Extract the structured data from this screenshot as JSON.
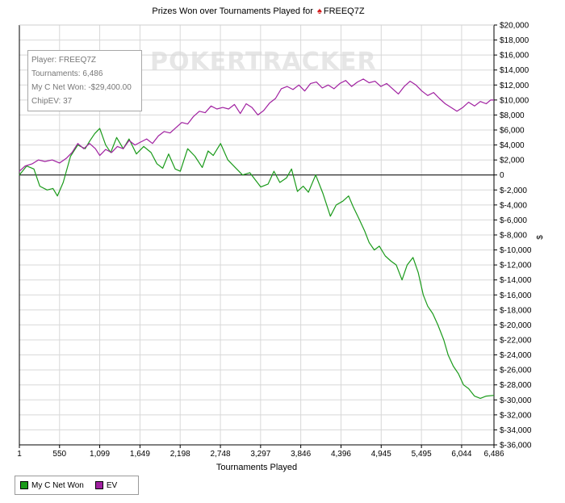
{
  "title": {
    "prefix": "Prizes Won over Tournaments Played for",
    "suit_icon": "spade-icon",
    "player": "FREEQ7Z"
  },
  "watermark": "POKERTRACKER",
  "info_box": {
    "player": "Player: FREEQ7Z",
    "tournaments": "Tournaments: 6,486",
    "net_won": "My C Net Won: -$29,400.00",
    "chipev": "ChipEV: 37"
  },
  "legend": {
    "items": [
      {
        "label": "My C Net Won",
        "color": "#1a9a1a"
      },
      {
        "label": "EV",
        "color": "#a020a0"
      }
    ]
  },
  "chart_data": {
    "type": "line",
    "title": "Prizes Won over Tournaments Played for FREEQ7Z",
    "xlabel": "Tournaments Played",
    "ylabel": "$",
    "xlim": [
      1,
      6486
    ],
    "ylim": [
      -36000,
      20000
    ],
    "x_ticks": [
      1,
      550,
      1099,
      1649,
      2198,
      2748,
      3297,
      3846,
      4396,
      4945,
      5495,
      6044,
      6486
    ],
    "x_tick_labels": [
      "1",
      "550",
      "1,099",
      "1,649",
      "2,198",
      "2,748",
      "3,297",
      "3,846",
      "4,396",
      "4,945",
      "5,495",
      "6,044",
      "6,486"
    ],
    "y_ticks": [
      20000,
      18000,
      16000,
      14000,
      12000,
      10000,
      8000,
      6000,
      4000,
      2000,
      0,
      -2000,
      -4000,
      -6000,
      -8000,
      -10000,
      -12000,
      -14000,
      -16000,
      -18000,
      -20000,
      -22000,
      -24000,
      -26000,
      -28000,
      -30000,
      -32000,
      -34000,
      -36000
    ],
    "y_tick_labels": [
      "$20,000",
      "$18,000",
      "$16,000",
      "$14,000",
      "$12,000",
      "$10,000",
      "$8,000",
      "$6,000",
      "$4,000",
      "$2,000",
      "0",
      "$-2,000",
      "$-4,000",
      "$-6,000",
      "$-8,000",
      "$-10,000",
      "$-12,000",
      "$-14,000",
      "$-16,000",
      "$-18,000",
      "$-20,000",
      "$-22,000",
      "$-24,000",
      "$-26,000",
      "$-28,000",
      "$-30,000",
      "$-32,000",
      "$-34,000",
      "$-36,000"
    ],
    "grid": true,
    "legend_position": "bottom-left",
    "series": [
      {
        "name": "My C Net Won",
        "color": "#1a9a1a",
        "points": [
          [
            1,
            0
          ],
          [
            100,
            1200
          ],
          [
            200,
            800
          ],
          [
            280,
            -1500
          ],
          [
            380,
            -2000
          ],
          [
            460,
            -1800
          ],
          [
            520,
            -2800
          ],
          [
            600,
            -1000
          ],
          [
            700,
            2500
          ],
          [
            800,
            4000
          ],
          [
            900,
            3500
          ],
          [
            960,
            4500
          ],
          [
            1030,
            5500
          ],
          [
            1100,
            6200
          ],
          [
            1180,
            4000
          ],
          [
            1250,
            3000
          ],
          [
            1330,
            5000
          ],
          [
            1420,
            3500
          ],
          [
            1500,
            4800
          ],
          [
            1600,
            2800
          ],
          [
            1700,
            3800
          ],
          [
            1800,
            3000
          ],
          [
            1880,
            1500
          ],
          [
            1960,
            900
          ],
          [
            2040,
            2800
          ],
          [
            2130,
            800
          ],
          [
            2200,
            500
          ],
          [
            2300,
            3500
          ],
          [
            2400,
            2500
          ],
          [
            2500,
            1000
          ],
          [
            2580,
            3200
          ],
          [
            2650,
            2600
          ],
          [
            2750,
            4200
          ],
          [
            2850,
            2000
          ],
          [
            2950,
            1000
          ],
          [
            3050,
            0
          ],
          [
            3150,
            300
          ],
          [
            3300,
            -1600
          ],
          [
            3400,
            -1200
          ],
          [
            3480,
            500
          ],
          [
            3560,
            -1000
          ],
          [
            3650,
            -400
          ],
          [
            3720,
            800
          ],
          [
            3800,
            -2200
          ],
          [
            3880,
            -1500
          ],
          [
            3950,
            -2300
          ],
          [
            4050,
            0
          ],
          [
            4150,
            -2500
          ],
          [
            4250,
            -5500
          ],
          [
            4330,
            -4000
          ],
          [
            4420,
            -3500
          ],
          [
            4500,
            -2800
          ],
          [
            4560,
            -4200
          ],
          [
            4640,
            -5800
          ],
          [
            4720,
            -7500
          ],
          [
            4780,
            -9000
          ],
          [
            4850,
            -10000
          ],
          [
            4920,
            -9500
          ],
          [
            5000,
            -10800
          ],
          [
            5080,
            -11500
          ],
          [
            5150,
            -12000
          ],
          [
            5230,
            -14000
          ],
          [
            5300,
            -12000
          ],
          [
            5380,
            -11000
          ],
          [
            5450,
            -13000
          ],
          [
            5520,
            -16000
          ],
          [
            5580,
            -17500
          ],
          [
            5650,
            -18500
          ],
          [
            5720,
            -20000
          ],
          [
            5800,
            -22000
          ],
          [
            5860,
            -24000
          ],
          [
            5930,
            -25500
          ],
          [
            6000,
            -26500
          ],
          [
            6070,
            -28000
          ],
          [
            6140,
            -28500
          ],
          [
            6220,
            -29500
          ],
          [
            6300,
            -29800
          ],
          [
            6380,
            -29500
          ],
          [
            6486,
            -29400
          ]
        ]
      },
      {
        "name": "EV",
        "color": "#a020a0",
        "points": [
          [
            1,
            500
          ],
          [
            80,
            1200
          ],
          [
            180,
            1500
          ],
          [
            260,
            2000
          ],
          [
            350,
            1800
          ],
          [
            450,
            2000
          ],
          [
            550,
            1600
          ],
          [
            640,
            2200
          ],
          [
            720,
            3000
          ],
          [
            800,
            4200
          ],
          [
            880,
            3500
          ],
          [
            960,
            4200
          ],
          [
            1040,
            3500
          ],
          [
            1100,
            2600
          ],
          [
            1180,
            3400
          ],
          [
            1260,
            3000
          ],
          [
            1340,
            3800
          ],
          [
            1420,
            3500
          ],
          [
            1500,
            4600
          ],
          [
            1580,
            4000
          ],
          [
            1660,
            4400
          ],
          [
            1740,
            4800
          ],
          [
            1820,
            4200
          ],
          [
            1900,
            5200
          ],
          [
            1980,
            5800
          ],
          [
            2060,
            5600
          ],
          [
            2140,
            6300
          ],
          [
            2220,
            7000
          ],
          [
            2300,
            6800
          ],
          [
            2380,
            7800
          ],
          [
            2460,
            8500
          ],
          [
            2540,
            8300
          ],
          [
            2620,
            9200
          ],
          [
            2700,
            8800
          ],
          [
            2780,
            9000
          ],
          [
            2860,
            8800
          ],
          [
            2940,
            9400
          ],
          [
            3020,
            8200
          ],
          [
            3100,
            9500
          ],
          [
            3180,
            9000
          ],
          [
            3260,
            8000
          ],
          [
            3340,
            8600
          ],
          [
            3420,
            9600
          ],
          [
            3500,
            10200
          ],
          [
            3580,
            11500
          ],
          [
            3660,
            11800
          ],
          [
            3740,
            11400
          ],
          [
            3820,
            12000
          ],
          [
            3900,
            11200
          ],
          [
            3980,
            12200
          ],
          [
            4060,
            12400
          ],
          [
            4140,
            11600
          ],
          [
            4220,
            12000
          ],
          [
            4300,
            11500
          ],
          [
            4380,
            12200
          ],
          [
            4460,
            12600
          ],
          [
            4540,
            11800
          ],
          [
            4620,
            12400
          ],
          [
            4700,
            12800
          ],
          [
            4780,
            12300
          ],
          [
            4860,
            12500
          ],
          [
            4940,
            11800
          ],
          [
            5020,
            12200
          ],
          [
            5100,
            11500
          ],
          [
            5180,
            10800
          ],
          [
            5260,
            11800
          ],
          [
            5340,
            12500
          ],
          [
            5420,
            12000
          ],
          [
            5500,
            11200
          ],
          [
            5580,
            10600
          ],
          [
            5660,
            11000
          ],
          [
            5740,
            10200
          ],
          [
            5820,
            9500
          ],
          [
            5900,
            9000
          ],
          [
            5980,
            8500
          ],
          [
            6060,
            9000
          ],
          [
            6140,
            9700
          ],
          [
            6220,
            9200
          ],
          [
            6300,
            9800
          ],
          [
            6380,
            9500
          ],
          [
            6440,
            10000
          ],
          [
            6486,
            10000
          ]
        ]
      }
    ]
  }
}
